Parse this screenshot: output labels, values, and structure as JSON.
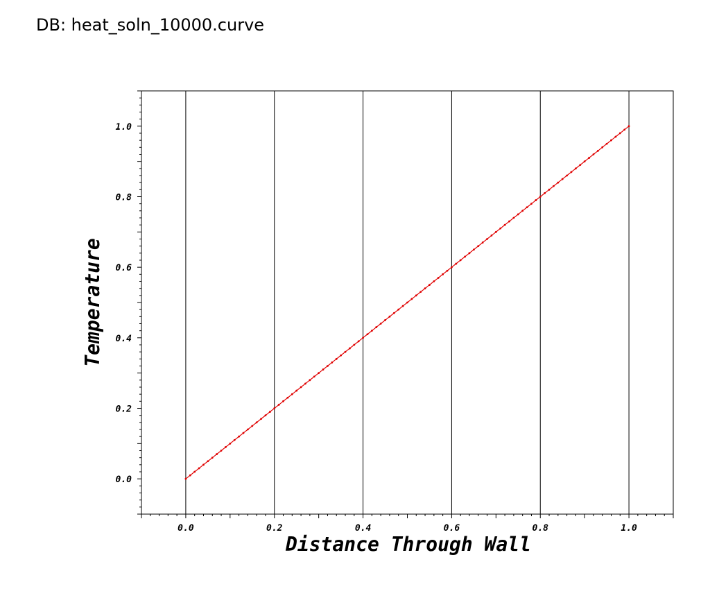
{
  "header": {
    "db_label": "DB: heat_soln_10000.curve"
  },
  "chart_data": {
    "type": "line",
    "xlabel": "Distance Through Wall",
    "ylabel": "Temperature",
    "xlim": [
      -0.1,
      1.1
    ],
    "ylim": [
      -0.1,
      1.1
    ],
    "x_ticks": [
      "0.0",
      "0.2",
      "0.4",
      "0.6",
      "0.8",
      "1.0"
    ],
    "y_ticks": [
      "0.0",
      "0.2",
      "0.4",
      "0.6",
      "0.8",
      "1.0"
    ],
    "x_gridlines": [
      0.0,
      0.2,
      0.4,
      0.6,
      0.8,
      1.0
    ],
    "grid": "vertical",
    "series": [
      {
        "color": "#e00000",
        "x_start": 0.0,
        "x_end": 1.0,
        "num_points": 101,
        "y_start": 0.0,
        "y_end": 1.0
      }
    ]
  }
}
